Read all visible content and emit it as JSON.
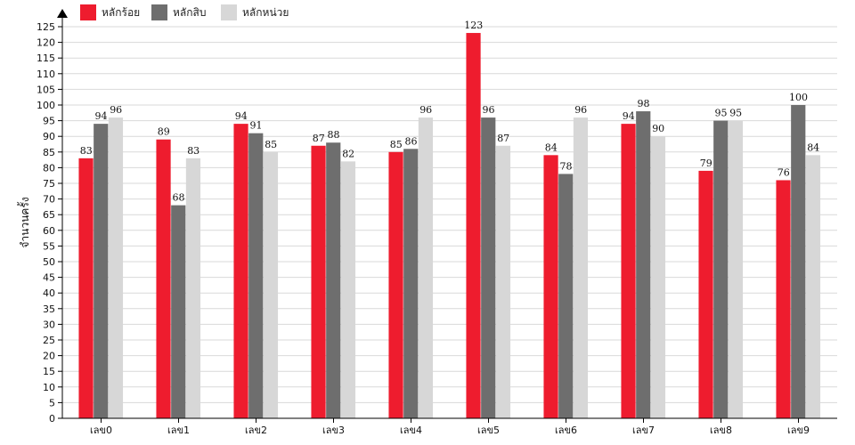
{
  "chart_data": {
    "type": "bar",
    "ylabel": "จำนวนครั้ง",
    "ylim": [
      0,
      125
    ],
    "ytick_step": 5,
    "grid": true,
    "legend_position": "top-left",
    "categories": [
      "เลข0",
      "เลข1",
      "เลข2",
      "เลข3",
      "เลข4",
      "เลข5",
      "เลข6",
      "เลข7",
      "เลข8",
      "เลข9"
    ],
    "series": [
      {
        "name": "หลักร้อย",
        "color": "#ee1c2e",
        "values": [
          83,
          89,
          94,
          87,
          85,
          123,
          84,
          94,
          79,
          76
        ]
      },
      {
        "name": "หลักสิบ",
        "color": "#6e6e6e",
        "values": [
          94,
          68,
          91,
          88,
          86,
          96,
          78,
          98,
          95,
          100
        ]
      },
      {
        "name": "หลักหน่วย",
        "color": "#d7d7d7",
        "values": [
          96,
          83,
          85,
          82,
          96,
          87,
          96,
          90,
          95,
          84
        ]
      }
    ]
  }
}
